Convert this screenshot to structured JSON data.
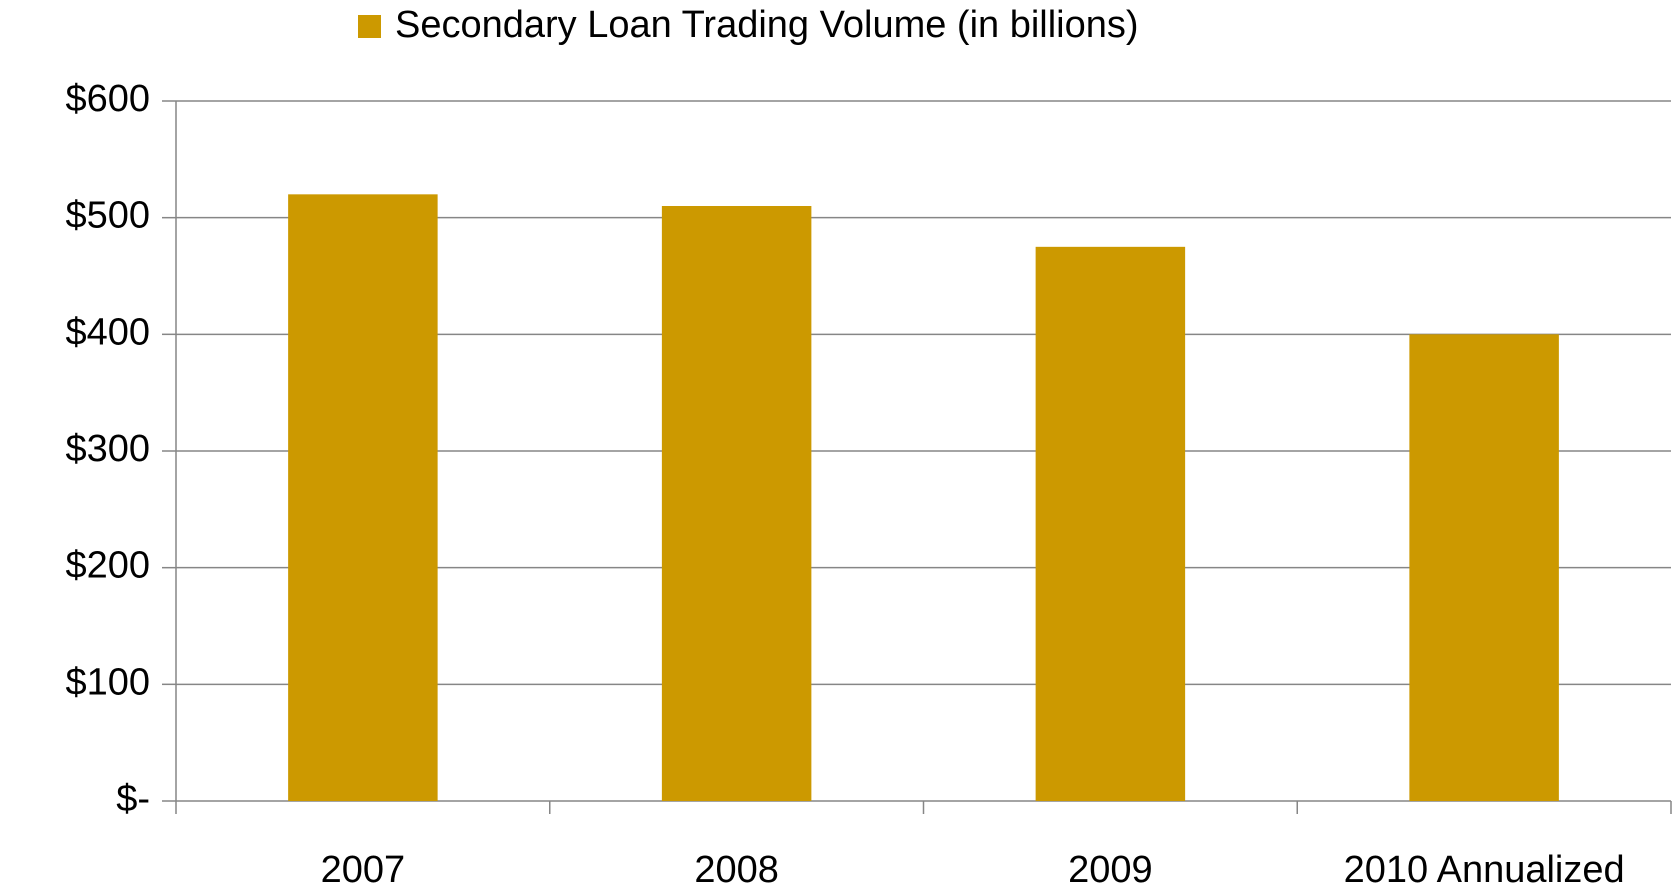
{
  "chart_data": {
    "type": "bar",
    "categories": [
      "2007",
      "2008",
      "2009",
      "2010 Annualized"
    ],
    "series": [
      {
        "name": "Secondary Loan Trading Volume (in billions)",
        "color": "#cc9900",
        "values": [
          520,
          510,
          475,
          400
        ]
      }
    ],
    "ylim": [
      0,
      600
    ],
    "yticks": [
      {
        "value": 0,
        "label": "$-"
      },
      {
        "value": 100,
        "label": "$100"
      },
      {
        "value": 200,
        "label": "$200"
      },
      {
        "value": 300,
        "label": "$300"
      },
      {
        "value": 400,
        "label": "$400"
      },
      {
        "value": 500,
        "label": "$500"
      },
      {
        "value": 600,
        "label": "$600"
      }
    ],
    "grid": true,
    "legend": "top"
  }
}
